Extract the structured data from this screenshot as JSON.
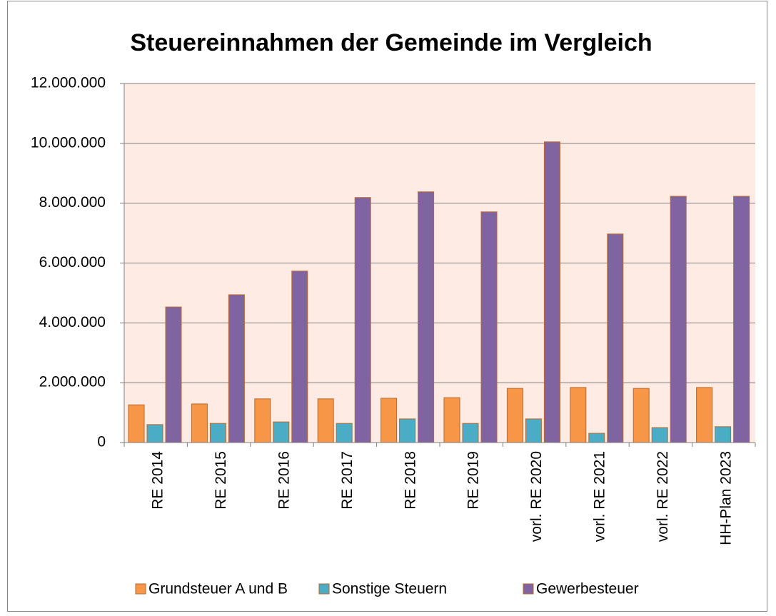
{
  "chart_data": {
    "type": "bar",
    "title": "Steuereinnahmen der Gemeinde im Vergleich",
    "categories": [
      "RE 2014",
      "RE 2015",
      "RE 2016",
      "RE 2017",
      "RE 2018",
      "RE 2019",
      "vorl. RE 2020",
      "vorl. RE 2021",
      "vorl. RE 2022",
      "HH-Plan 2023"
    ],
    "series": [
      {
        "name": "Grundsteuer A und B",
        "color": "#f79646",
        "values": [
          1260000,
          1290000,
          1460000,
          1460000,
          1480000,
          1500000,
          1810000,
          1840000,
          1810000,
          1840000
        ]
      },
      {
        "name": "Sonstige Steuern",
        "color": "#4bacc6",
        "values": [
          600000,
          640000,
          690000,
          640000,
          790000,
          640000,
          790000,
          310000,
          500000,
          530000
        ]
      },
      {
        "name": "Gewerbesteuer",
        "color": "#8064a2",
        "values": [
          4530000,
          4940000,
          5730000,
          8190000,
          8380000,
          7710000,
          10050000,
          6970000,
          8230000,
          8230000
        ]
      }
    ],
    "ylim": [
      0,
      12000000
    ],
    "yticks": [
      0,
      {
        "value": 2000000,
        "label": "2.000.000"
      },
      {
        "value": 4000000,
        "label": "4.000.000"
      },
      {
        "value": 6000000,
        "label": "6.000.000"
      },
      {
        "value": 8000000,
        "label": "8.000.000"
      },
      {
        "value": 10000000,
        "label": "10.000.000"
      },
      {
        "value": 12000000,
        "label": "12.000.000"
      }
    ],
    "grid": true,
    "legend": "bottom"
  }
}
